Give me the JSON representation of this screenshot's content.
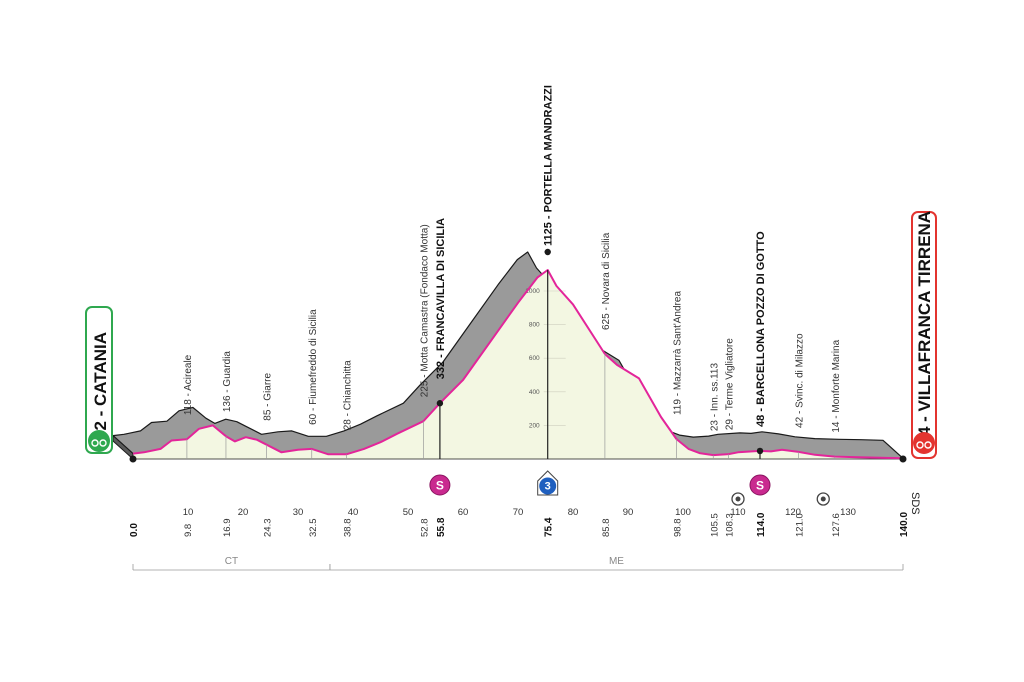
{
  "start": {
    "name": "32 - CATANIA",
    "color": "#2fa84f"
  },
  "finish": {
    "name": "4 - VILLAFRANCA TIRRENA",
    "color": "#e3342f"
  },
  "sds_label": "SDS",
  "chart_data": {
    "type": "area",
    "xlim": [
      0,
      140
    ],
    "ylim": [
      0,
      1125
    ],
    "x_ticks": [
      10,
      20,
      30,
      40,
      50,
      60,
      70,
      80,
      90,
      100,
      110,
      120,
      130,
      140
    ],
    "y_ticks": [
      200,
      400,
      600,
      800,
      1000
    ],
    "profile": [
      [
        0,
        32
      ],
      [
        2,
        40
      ],
      [
        5,
        60
      ],
      [
        7,
        110
      ],
      [
        9.8,
        118
      ],
      [
        12,
        180
      ],
      [
        14.5,
        200
      ],
      [
        16.9,
        136
      ],
      [
        18.5,
        105
      ],
      [
        20.5,
        130
      ],
      [
        22.5,
        115
      ],
      [
        24.3,
        85
      ],
      [
        27,
        40
      ],
      [
        30,
        55
      ],
      [
        32.5,
        60
      ],
      [
        35.5,
        28
      ],
      [
        38.8,
        28
      ],
      [
        42,
        60
      ],
      [
        45,
        100
      ],
      [
        48,
        150
      ],
      [
        52.8,
        225
      ],
      [
        55.8,
        332
      ],
      [
        60,
        470
      ],
      [
        65,
        700
      ],
      [
        70,
        930
      ],
      [
        73.5,
        1080
      ],
      [
        75.4,
        1125
      ],
      [
        77,
        1030
      ],
      [
        80,
        920
      ],
      [
        85.8,
        625
      ],
      [
        88,
        560
      ],
      [
        92,
        480
      ],
      [
        96,
        250
      ],
      [
        98.8,
        119
      ],
      [
        101,
        60
      ],
      [
        103,
        35
      ],
      [
        105.5,
        23
      ],
      [
        108.3,
        29
      ],
      [
        110,
        40
      ],
      [
        114,
        48
      ],
      [
        116,
        45
      ],
      [
        118,
        55
      ],
      [
        121,
        42
      ],
      [
        124,
        25
      ],
      [
        127.6,
        14
      ],
      [
        132,
        10
      ],
      [
        136,
        8
      ],
      [
        140,
        4
      ]
    ],
    "points": [
      {
        "km": "0.0",
        "x": 0,
        "label": "32 - CATANIA",
        "bold": true
      },
      {
        "km": "9.8",
        "x": 9.8,
        "label": "118 - Acireale",
        "bold": false
      },
      {
        "km": "16.9",
        "x": 16.9,
        "label": "136 - Guardia",
        "bold": false
      },
      {
        "km": "24.3",
        "x": 24.3,
        "label": "85 - Giarre",
        "bold": false
      },
      {
        "km": "32.5",
        "x": 32.5,
        "label": "60 - Fiumefreddo di Sicilia",
        "bold": false
      },
      {
        "km": "38.8",
        "x": 38.8,
        "label": "28 - Chianchitta",
        "bold": false
      },
      {
        "km": "52.8",
        "x": 52.8,
        "label": "225 - Motta Camastra (Fondaco Motta)",
        "bold": false
      },
      {
        "km": "55.8",
        "x": 55.8,
        "label": "332 - FRANCAVILLA DI SICILIA",
        "bold": true
      },
      {
        "km": "75.4",
        "x": 75.4,
        "label": "1125 - PORTELLA MANDRAZZI",
        "bold": true
      },
      {
        "km": "85.8",
        "x": 85.8,
        "label": "625 - Novara di Sicilia",
        "bold": false
      },
      {
        "km": "98.8",
        "x": 98.8,
        "label": "119 - Mazzarrà Sant'Andrea",
        "bold": false
      },
      {
        "km": "105.5",
        "x": 105.5,
        "label": "23 - Inn. ss.113",
        "bold": false
      },
      {
        "km": "108.3",
        "x": 108.3,
        "label": "29 - Terme Vigliatore",
        "bold": false
      },
      {
        "km": "114.0",
        "x": 114,
        "label": "48 - BARCELLONA POZZO DI GOTTO",
        "bold": true
      },
      {
        "km": "121.0",
        "x": 121,
        "label": "42 - Svinc. di Milazzo",
        "bold": false
      },
      {
        "km": "127.6",
        "x": 127.6,
        "label": "14 - Monforte Marina",
        "bold": false
      },
      {
        "km": "140.0",
        "x": 140,
        "label": "4 - VILLAFRANCA TIRRENA",
        "bold": true
      }
    ],
    "markers": [
      {
        "type": "sprint",
        "symbol": "S",
        "x": 55.8,
        "color": "#c92a8f"
      },
      {
        "type": "kom",
        "symbol": "3",
        "x": 75.4,
        "color": "#1f5fbf"
      },
      {
        "type": "sprint",
        "symbol": "S",
        "x": 114,
        "color": "#c92a8f"
      },
      {
        "type": "feed",
        "symbol": "",
        "x": 110,
        "color": "#444"
      },
      {
        "type": "feed",
        "symbol": "",
        "x": 125.5,
        "color": "#444"
      }
    ],
    "provinces": [
      {
        "name": "CT",
        "from": 0,
        "to": 35.8
      },
      {
        "name": "ME",
        "from": 35.8,
        "to": 140
      }
    ],
    "colors": {
      "ground": "#f3f7e2",
      "profile": "#e3259a",
      "relief": "#9a9a9a"
    }
  }
}
